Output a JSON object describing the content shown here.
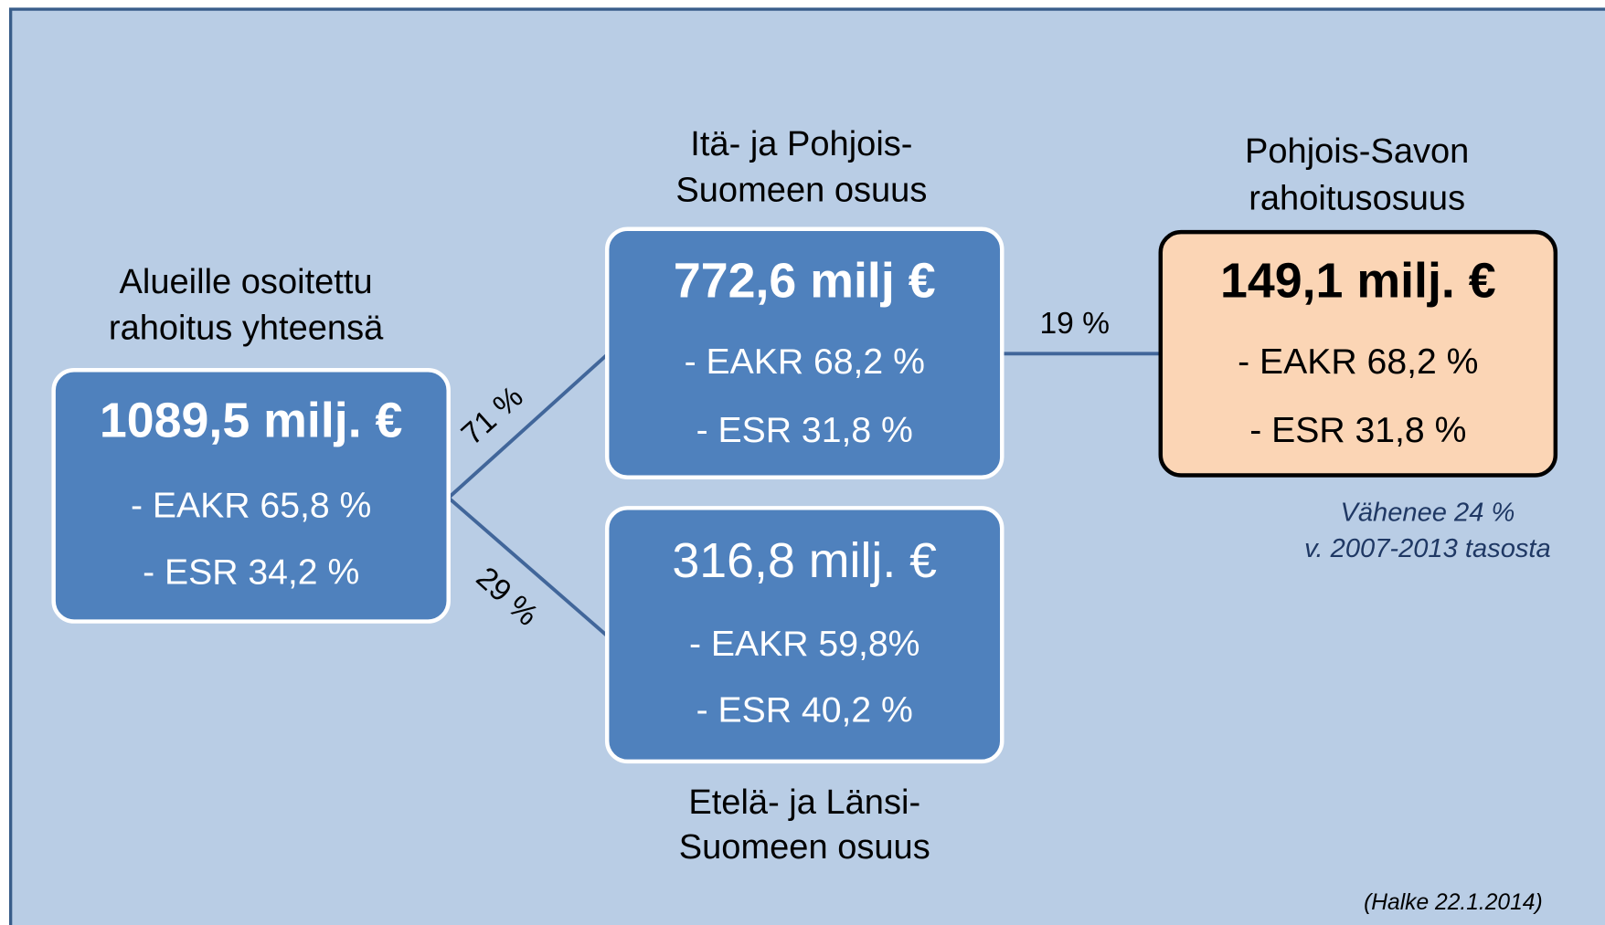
{
  "nodes": [
    {
      "label": [
        "Alueille osoitettu",
        "rahoitus yhteensä"
      ],
      "amount": "1089,5 milj. €",
      "lines": [
        "- EAKR 65,8 %",
        "- ESR 34,2 %"
      ]
    },
    {
      "label": [
        "Itä- ja Pohjois-",
        "Suomeen osuus"
      ],
      "amount": "772,6 milj €",
      "lines": [
        "- EAKR 68,2 %",
        "- ESR 31,8 %"
      ]
    },
    {
      "label": [
        "Etelä- ja Länsi-",
        "Suomeen osuus"
      ],
      "amount": "316,8 milj. €",
      "lines": [
        "- EAKR 59,8%",
        "- ESR 40,2 %"
      ]
    },
    {
      "label": [
        "Pohjois-Savon",
        "rahoitusosuus"
      ],
      "amount": "149,1 milj. €",
      "lines": [
        "- EAKR 68,2 %",
        "- ESR 31,8 %"
      ]
    }
  ],
  "edges": [
    "71 %",
    "29 %",
    "19 %"
  ],
  "note": [
    "Vähenee 24 %",
    "v. 2007-2013 tasosta"
  ],
  "source": "(Halke 22.1.2014)"
}
